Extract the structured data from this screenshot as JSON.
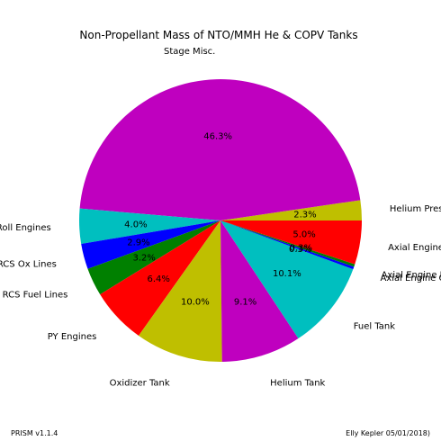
{
  "chart_data": {
    "type": "pie",
    "title": "Non-Propellant Mass of NTO/MMH He & COPV Tanks",
    "slices": [
      {
        "label": "Helium Pressurant",
        "value": 2.3,
        "pct_label": "2.3%",
        "color": "#bfbf00"
      },
      {
        "label": "Stage Misc.",
        "value": 46.3,
        "pct_label": "46.3%",
        "color": "#bf00bf"
      },
      {
        "label": "Roll Engines",
        "value": 4.0,
        "pct_label": "4.0%",
        "color": "#00bfbf"
      },
      {
        "label": "RCS Ox Lines",
        "value": 2.9,
        "pct_label": "2.9%",
        "color": "#0000ff"
      },
      {
        "label": "RCS Fuel Lines",
        "value": 3.2,
        "pct_label": "3.2%",
        "color": "#008000"
      },
      {
        "label": "PY Engines",
        "value": 6.4,
        "pct_label": "6.4%",
        "color": "#ff0000"
      },
      {
        "label": "Oxidizer Tank",
        "value": 10.0,
        "pct_label": "10.0%",
        "color": "#bfbf00"
      },
      {
        "label": "Helium Tank",
        "value": 9.1,
        "pct_label": "9.1%",
        "color": "#bf00bf"
      },
      {
        "label": "Fuel Tank",
        "value": 10.1,
        "pct_label": "10.1%",
        "color": "#00bfbf"
      },
      {
        "label": "Axial Engine Ox Lines",
        "value": 0.3,
        "pct_label": "0.3%",
        "color": "#0000ff"
      },
      {
        "label": "Axial Engine Fuel Lines",
        "value": 0.3,
        "pct_label": "0.3%",
        "color": "#008000"
      },
      {
        "label": "Axial Engines",
        "value": 5.0,
        "pct_label": "5.0%",
        "color": "#ff0000"
      }
    ],
    "start_angle_deg": 0,
    "direction": "counterclockwise",
    "legend": "none"
  },
  "footer": {
    "left": "PRISM v1.1.4",
    "right": "Elly Kepler 05/01/2018)"
  }
}
